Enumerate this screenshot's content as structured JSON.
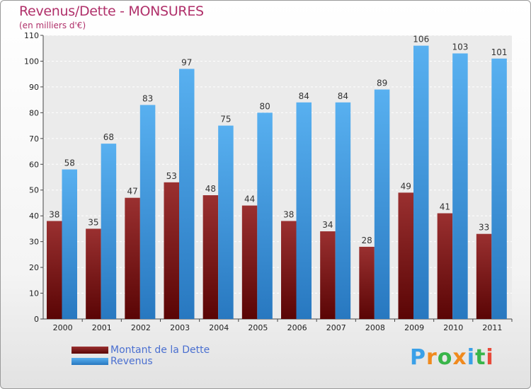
{
  "chart_data": {
    "type": "bar",
    "title": "Revenus/Dette - MONSURES",
    "subtitle": "(en milliers d'€)",
    "categories": [
      "2000",
      "2001",
      "2002",
      "2003",
      "2004",
      "2005",
      "2006",
      "2007",
      "2008",
      "2009",
      "2010",
      "2011"
    ],
    "series": [
      {
        "name": "Montant de la Dette",
        "values": [
          38,
          35,
          47,
          53,
          48,
          44,
          38,
          34,
          28,
          49,
          41,
          33
        ],
        "color": "#7a1a1a"
      },
      {
        "name": "Revenus",
        "values": [
          58,
          68,
          83,
          97,
          75,
          80,
          84,
          84,
          89,
          106,
          103,
          101
        ],
        "color": "#3a9ce0"
      }
    ],
    "yticks": [
      "0",
      "10",
      "20",
      "30",
      "40",
      "50",
      "60",
      "70",
      "80",
      "90",
      "100",
      "110"
    ],
    "ylim": [
      0,
      110
    ],
    "grid": true,
    "legend_position": "bottom-left"
  },
  "logo": {
    "text": "Proxiti",
    "letters": [
      {
        "ch": "P",
        "color": "#3aa0e8"
      },
      {
        "ch": "r",
        "color": "#f08a1e"
      },
      {
        "ch": "o",
        "color": "#39b54a"
      },
      {
        "ch": "x",
        "color": "#f08a1e"
      },
      {
        "ch": "i",
        "color": "#3aa0e8"
      },
      {
        "ch": "t",
        "color": "#39b54a"
      },
      {
        "ch": "i",
        "color": "#e84a3a"
      }
    ]
  }
}
